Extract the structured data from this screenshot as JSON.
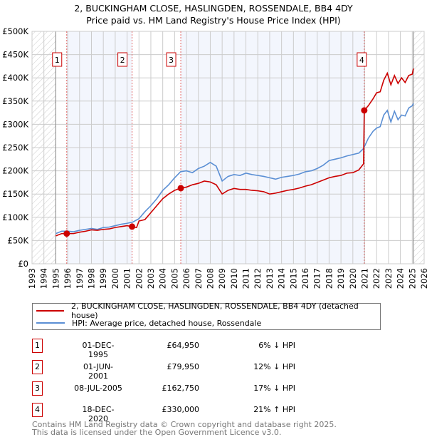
{
  "title": "2, BUCKINGHAM CLOSE, HASLINGDEN, ROSSENDALE, BB4 4DY",
  "subtitle": "Price paid vs. HM Land Registry's House Price Index (HPI)",
  "chart_data": {
    "type": "line",
    "xlim": [
      1993,
      2026
    ],
    "ylim": [
      0,
      500000
    ],
    "x_ticks": [
      "1993",
      "1994",
      "1995",
      "1996",
      "1997",
      "1998",
      "1999",
      "2000",
      "2001",
      "2002",
      "2003",
      "2004",
      "2005",
      "2006",
      "2007",
      "2008",
      "2009",
      "2010",
      "2011",
      "2012",
      "2013",
      "2014",
      "2015",
      "2016",
      "2017",
      "2018",
      "2019",
      "2020",
      "2021",
      "2022",
      "2023",
      "2024",
      "2025",
      "2026"
    ],
    "y_ticks": [
      {
        "v": 0,
        "l": "£0"
      },
      {
        "v": 50000,
        "l": "£50K"
      },
      {
        "v": 100000,
        "l": "£100K"
      },
      {
        "v": 150000,
        "l": "£150K"
      },
      {
        "v": 200000,
        "l": "£200K"
      },
      {
        "v": 250000,
        "l": "£250K"
      },
      {
        "v": 300000,
        "l": "£300K"
      },
      {
        "v": 350000,
        "l": "£350K"
      },
      {
        "v": 400000,
        "l": "£400K"
      },
      {
        "v": 450000,
        "l": "£450K"
      },
      {
        "v": 500000,
        "l": "£500K"
      }
    ],
    "grid": true,
    "series": [
      {
        "name": "2, BUCKINGHAM CLOSE, HASLINGDEN, ROSSENDALE, BB4 4DY (detached house)",
        "color": "#cc0000",
        "x": [
          1995.0,
          1995.5,
          1995.92,
          1996.5,
          1997,
          1997.5,
          1998,
          1998.5,
          1999,
          1999.5,
          2000,
          2000.5,
          2001,
          2001.42,
          2001.8,
          2002,
          2002.5,
          2003,
          2003.5,
          2004,
          2004.5,
          2005,
          2005.52,
          2006,
          2006.5,
          2007,
          2007.5,
          2008,
          2008.5,
          2009,
          2009.5,
          2010,
          2010.5,
          2011,
          2011.5,
          2012,
          2012.5,
          2013,
          2013.5,
          2014,
          2014.5,
          2015,
          2015.5,
          2016,
          2016.5,
          2017,
          2017.5,
          2018,
          2018.5,
          2019,
          2019.5,
          2020,
          2020.5,
          2020.9,
          2020.96,
          2021.3,
          2021.7,
          2022,
          2022.3,
          2022.6,
          2022.9,
          2023.2,
          2023.5,
          2023.8,
          2024.1,
          2024.4,
          2024.7,
          2025.0,
          2025.1
        ],
        "y": [
          60000,
          65000,
          64950,
          65000,
          68000,
          70000,
          73000,
          72000,
          74000,
          75000,
          78000,
          80000,
          82000,
          79950,
          78000,
          92000,
          95000,
          110000,
          125000,
          140000,
          150000,
          158000,
          162750,
          165000,
          170000,
          173000,
          178000,
          176000,
          170000,
          150000,
          158000,
          162000,
          160000,
          160000,
          158000,
          157000,
          155000,
          150000,
          152000,
          155000,
          158000,
          160000,
          163000,
          167000,
          170000,
          175000,
          180000,
          185000,
          188000,
          190000,
          195000,
          196000,
          202000,
          215000,
          330000,
          340000,
          355000,
          368000,
          370000,
          395000,
          410000,
          385000,
          405000,
          388000,
          400000,
          390000,
          405000,
          408000,
          420000
        ]
      },
      {
        "name": "HPI: Average price, detached house, Rossendale",
        "color": "#5b8fd4",
        "x": [
          1995.0,
          1995.5,
          1996,
          1996.5,
          1997,
          1997.5,
          1998,
          1998.5,
          1999,
          1999.5,
          2000,
          2000.5,
          2001,
          2001.5,
          2002,
          2002.5,
          2003,
          2003.5,
          2004,
          2004.5,
          2005,
          2005.5,
          2006,
          2006.5,
          2007,
          2007.5,
          2008,
          2008.5,
          2009,
          2009.5,
          2010,
          2010.5,
          2011,
          2011.5,
          2012,
          2012.5,
          2013,
          2013.5,
          2014,
          2014.5,
          2015,
          2015.5,
          2016,
          2016.5,
          2017,
          2017.5,
          2018,
          2018.5,
          2019,
          2019.5,
          2020,
          2020.5,
          2020.9,
          2021.3,
          2021.7,
          2022,
          2022.3,
          2022.6,
          2022.9,
          2023.2,
          2023.5,
          2023.8,
          2024.1,
          2024.4,
          2024.7,
          2025.0,
          2025.1
        ],
        "y": [
          65000,
          70000,
          70000,
          69000,
          72000,
          74000,
          76000,
          74000,
          78000,
          79000,
          82000,
          85000,
          87000,
          90000,
          97000,
          112000,
          125000,
          140000,
          158000,
          170000,
          185000,
          198000,
          200000,
          196000,
          205000,
          210000,
          218000,
          210000,
          178000,
          188000,
          192000,
          190000,
          195000,
          192000,
          190000,
          188000,
          185000,
          182000,
          186000,
          188000,
          190000,
          193000,
          198000,
          200000,
          205000,
          212000,
          222000,
          225000,
          228000,
          232000,
          235000,
          238000,
          248000,
          270000,
          285000,
          292000,
          295000,
          320000,
          330000,
          305000,
          328000,
          310000,
          320000,
          318000,
          335000,
          340000,
          345000
        ]
      }
    ],
    "sales": [
      {
        "n": "1",
        "x": 1995.92,
        "y": 64950
      },
      {
        "n": "2",
        "x": 2001.42,
        "y": 79950
      },
      {
        "n": "3",
        "x": 2005.52,
        "y": 162750
      },
      {
        "n": "4",
        "x": 2020.96,
        "y": 330000
      }
    ]
  },
  "legend": {
    "red_label": "2, BUCKINGHAM CLOSE, HASLINGDEN, ROSSENDALE, BB4 4DY (detached house)",
    "blue_label": "HPI: Average price, detached house, Rossendale"
  },
  "table": [
    {
      "n": "1",
      "date": "01-DEC-1995",
      "price": "£64,950",
      "hpi": "6% ↓ HPI"
    },
    {
      "n": "2",
      "date": "01-JUN-2001",
      "price": "£79,950",
      "hpi": "12% ↓ HPI"
    },
    {
      "n": "3",
      "date": "08-JUL-2005",
      "price": "£162,750",
      "hpi": "17% ↓ HPI"
    },
    {
      "n": "4",
      "date": "18-DEC-2020",
      "price": "£330,000",
      "hpi": "21% ↑ HPI"
    }
  ],
  "footer": {
    "line1": "Contains HM Land Registry data © Crown copyright and database right 2025.",
    "line2": "This data is licensed under the Open Government Licence v3.0."
  }
}
